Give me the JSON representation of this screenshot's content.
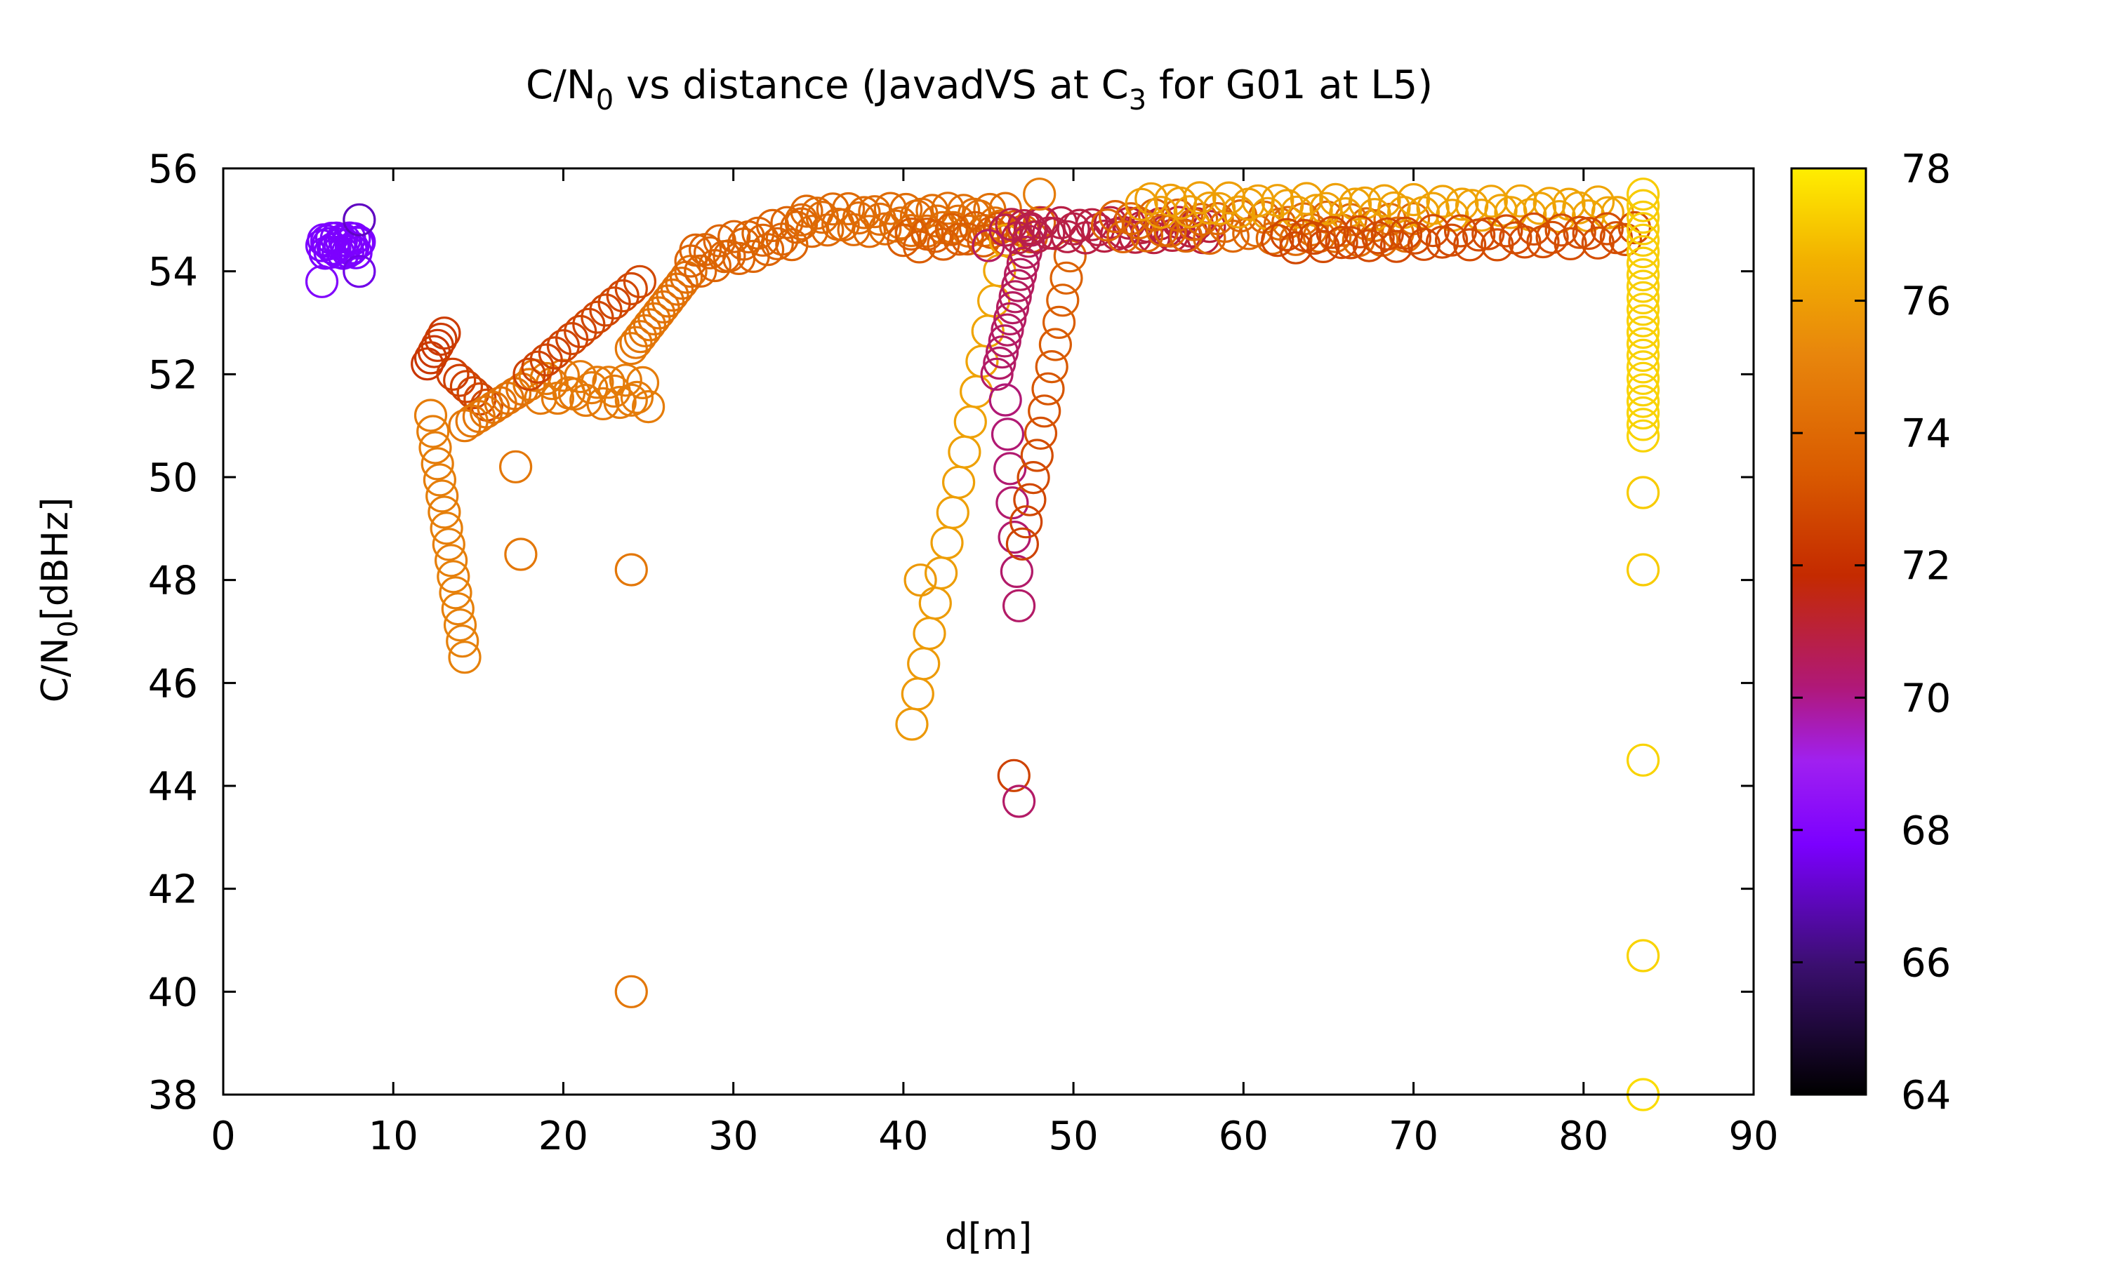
{
  "chart_data": {
    "type": "scatter",
    "marker": "open-circle",
    "title": {
      "prefix": "C/N",
      "sub1": "0",
      "mid": " vs distance (JavadVS at C",
      "sub2": "3",
      "suffix": " for G01 at L5)"
    },
    "xlabel": "d[m]",
    "ylabel": {
      "prefix": "C/N",
      "sub": "0",
      "suffix": "[dBHz]"
    },
    "xlim": [
      0,
      90
    ],
    "ylim": [
      38,
      56
    ],
    "xticks": [
      "0",
      "10",
      "20",
      "30",
      "40",
      "50",
      "60",
      "70",
      "80",
      "90"
    ],
    "yticks": [
      "38",
      "40",
      "42",
      "44",
      "46",
      "48",
      "50",
      "52",
      "54",
      "56"
    ],
    "colorbar": {
      "range": [
        64,
        78
      ],
      "ticks": [
        "64",
        "66",
        "68",
        "70",
        "72",
        "74",
        "76",
        "78"
      ],
      "palette": [
        "#000000",
        "#3b0f70",
        "#7b00ff",
        "#a020f0",
        "#b01878",
        "#c42a00",
        "#d95a00",
        "#e8860c",
        "#f2b000",
        "#ffee00"
      ],
      "stops": [
        0,
        0.14,
        0.27,
        0.36,
        0.44,
        0.56,
        0.67,
        0.8,
        0.9,
        1
      ]
    },
    "segments": [
      {
        "x0": 5.8,
        "y0": 54.5,
        "x1": 8.0,
        "y1": 54.5,
        "c0": 67.8,
        "c1": 67.8,
        "n": 24,
        "jy": 0.3
      },
      {
        "x0": 12.0,
        "y0": 52.2,
        "x1": 13.0,
        "y1": 52.8,
        "c0": 72.2,
        "c1": 72.4,
        "n": 6
      },
      {
        "x0": 13.5,
        "y0": 52.0,
        "x1": 15.5,
        "y1": 51.4,
        "c0": 72.5,
        "c1": 72.8,
        "n": 6
      },
      {
        "x0": 12.2,
        "y0": 51.2,
        "x1": 14.2,
        "y1": 46.5,
        "c0": 74.8,
        "c1": 75.0,
        "n": 16
      },
      {
        "x0": 14.2,
        "y0": 51.0,
        "x1": 18.0,
        "y1": 51.8,
        "c0": 74.6,
        "c1": 74.3,
        "n": 10
      },
      {
        "x0": 18.0,
        "y0": 51.8,
        "x1": 25.0,
        "y1": 51.6,
        "c0": 74.6,
        "c1": 74.8,
        "n": 22,
        "jy": 0.5
      },
      {
        "x0": 18.0,
        "y0": 52.0,
        "x1": 24.5,
        "y1": 53.8,
        "c0": 72.6,
        "c1": 72.8,
        "n": 14
      },
      {
        "x0": 24.0,
        "y0": 52.5,
        "x1": 27.5,
        "y1": 54.0,
        "c0": 74.6,
        "c1": 74.2,
        "n": 14
      },
      {
        "x0": 27.5,
        "y0": 54.2,
        "x1": 34.0,
        "y1": 54.8,
        "c0": 73.8,
        "c1": 73.8,
        "n": 24,
        "jy": 0.5
      },
      {
        "x0": 34.0,
        "y0": 55.0,
        "x1": 46.0,
        "y1": 55.0,
        "c0": 74.0,
        "c1": 74.3,
        "n": 40,
        "jy": 0.45
      },
      {
        "x0": 40.0,
        "y0": 54.6,
        "x1": 48.0,
        "y1": 54.8,
        "c0": 73.5,
        "c1": 73.5,
        "n": 18,
        "jy": 0.3
      },
      {
        "x0": 40.5,
        "y0": 45.2,
        "x1": 46.0,
        "y1": 54.6,
        "c0": 75.8,
        "c1": 76.3,
        "n": 17
      },
      {
        "x0": 45.5,
        "y0": 52.0,
        "x1": 47.5,
        "y1": 54.8,
        "c0": 70.4,
        "c1": 70.6,
        "n": 14
      },
      {
        "x0": 46.0,
        "y0": 51.5,
        "x1": 46.8,
        "y1": 47.5,
        "c0": 70.2,
        "c1": 70.4,
        "n": 7
      },
      {
        "x0": 47.0,
        "y0": 48.7,
        "x1": 49.8,
        "y1": 54.3,
        "c0": 72.6,
        "c1": 73.8,
        "n": 14
      },
      {
        "x0": 46.0,
        "y0": 54.8,
        "x1": 58.0,
        "y1": 54.8,
        "c0": 70.8,
        "c1": 71.0,
        "n": 34,
        "jy": 0.3
      },
      {
        "x0": 52.0,
        "y0": 54.9,
        "x1": 70.0,
        "y1": 54.8,
        "c0": 73.8,
        "c1": 74.2,
        "n": 40,
        "jy": 0.45
      },
      {
        "x0": 54.0,
        "y0": 55.3,
        "x1": 82.0,
        "y1": 55.2,
        "c0": 76.0,
        "c1": 76.2,
        "n": 50,
        "jy": 0.3
      },
      {
        "x0": 62.0,
        "y0": 54.6,
        "x1": 83.0,
        "y1": 54.7,
        "c0": 72.8,
        "c1": 73.0,
        "n": 40,
        "jy": 0.3
      },
      {
        "x0": 83.5,
        "y0": 55.5,
        "x1": 83.5,
        "y1": 50.8,
        "c0": 77.2,
        "c1": 77.4,
        "n": 22
      }
    ],
    "points": [
      {
        "x": 8.0,
        "y": 55.0,
        "c": 67.0
      },
      {
        "x": 8.0,
        "y": 54.0,
        "c": 67.5
      },
      {
        "x": 5.8,
        "y": 53.8,
        "c": 68.0
      },
      {
        "x": 17.2,
        "y": 50.2,
        "c": 74.6
      },
      {
        "x": 17.5,
        "y": 48.5,
        "c": 74.6
      },
      {
        "x": 24.0,
        "y": 48.2,
        "c": 74.6
      },
      {
        "x": 24.0,
        "y": 40.0,
        "c": 74.6
      },
      {
        "x": 41.0,
        "y": 48.0,
        "c": 75.8
      },
      {
        "x": 46.5,
        "y": 44.2,
        "c": 72.6
      },
      {
        "x": 46.8,
        "y": 43.7,
        "c": 70.4
      },
      {
        "x": 48.0,
        "y": 55.5,
        "c": 74.8
      },
      {
        "x": 45.0,
        "y": 54.5,
        "c": 70.5
      },
      {
        "x": 83.5,
        "y": 49.7,
        "c": 77.2
      },
      {
        "x": 83.5,
        "y": 48.2,
        "c": 77.2
      },
      {
        "x": 83.5,
        "y": 44.5,
        "c": 77.4
      },
      {
        "x": 83.5,
        "y": 40.7,
        "c": 77.4
      },
      {
        "x": 83.5,
        "y": 38.0,
        "c": 77.6
      }
    ]
  }
}
